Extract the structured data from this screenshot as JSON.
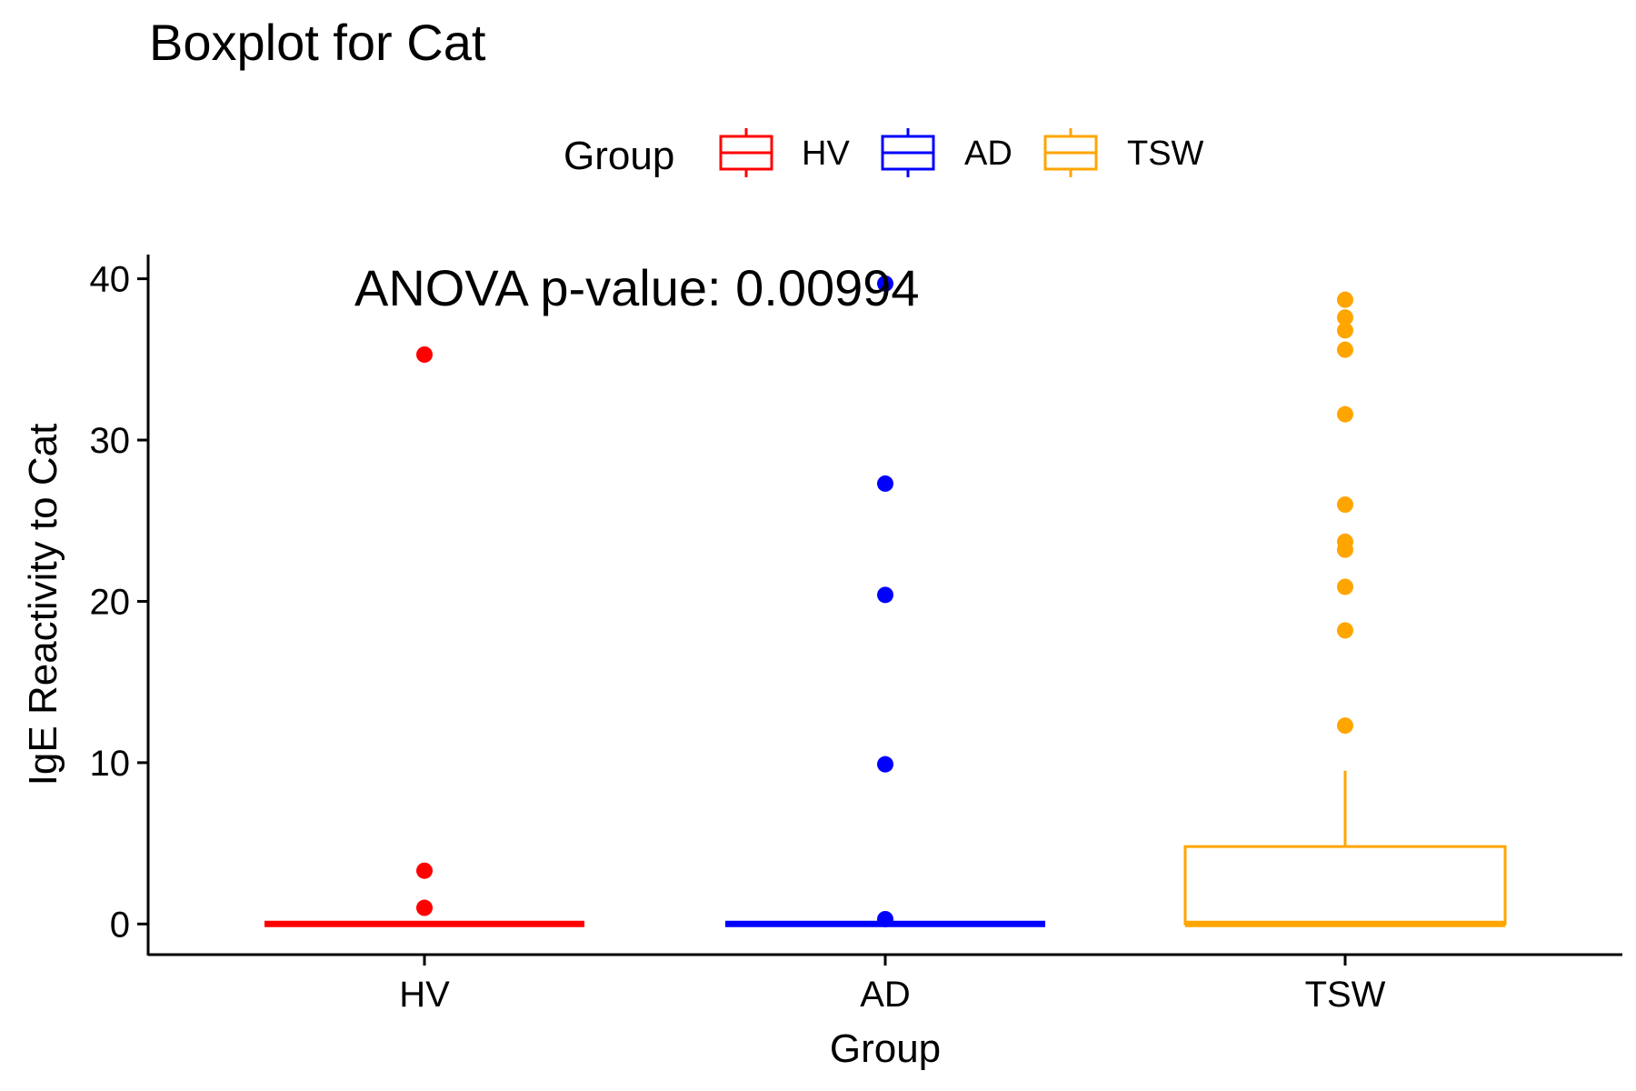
{
  "chart_data": {
    "type": "boxplot",
    "title": "Boxplot for Cat",
    "xlabel": "Group",
    "ylabel": "IgE Reactivity to Cat",
    "ylim": [
      -1.9,
      41.5
    ],
    "yticks": [
      0,
      10,
      20,
      30,
      40
    ],
    "categories": [
      "HV",
      "AD",
      "TSW"
    ],
    "annotation": "ANOVA p-value: 0.00994",
    "legend": {
      "title": "Group",
      "position": "top",
      "items": [
        {
          "label": "HV",
          "color": "#ff0000"
        },
        {
          "label": "AD",
          "color": "#0000ff"
        },
        {
          "label": "TSW",
          "color": "#ffa500"
        }
      ]
    },
    "grid": false,
    "series": [
      {
        "group": "HV",
        "color": "#ff0000",
        "box": {
          "lower_whisker": 0,
          "q1": 0,
          "median": 0,
          "q3": 0,
          "upper_whisker": 0
        },
        "outliers": [
          35.3,
          3.3,
          1.0
        ]
      },
      {
        "group": "AD",
        "color": "#0000ff",
        "box": {
          "lower_whisker": 0,
          "q1": 0,
          "median": 0,
          "q3": 0,
          "upper_whisker": 0
        },
        "outliers": [
          39.7,
          27.3,
          20.4,
          9.9,
          0.3
        ]
      },
      {
        "group": "TSW",
        "color": "#ffa500",
        "box": {
          "lower_whisker": 0,
          "q1": 0,
          "median": 0,
          "q3": 4.8,
          "upper_whisker": 9.5
        },
        "outliers": [
          38.7,
          37.6,
          36.8,
          35.6,
          31.6,
          26.0,
          23.7,
          23.2,
          20.9,
          18.2,
          12.3
        ]
      }
    ]
  }
}
